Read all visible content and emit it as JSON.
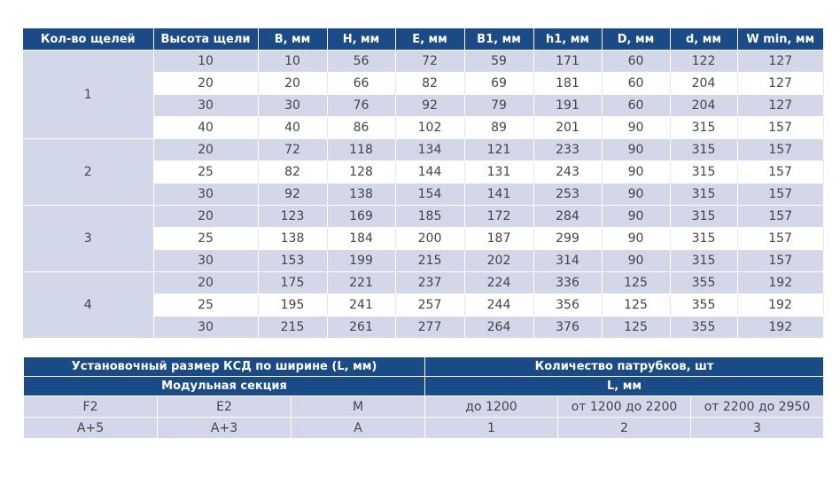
{
  "dims_table": {
    "headers": [
      "Кол-во щелей",
      "Высота щели",
      "B, мм",
      "H, мм",
      "E, мм",
      "B1, мм",
      "h1, мм",
      "D, мм",
      "d, мм",
      "W min, мм"
    ],
    "groups": [
      {
        "count": "1",
        "rows": [
          [
            "10",
            "10",
            "56",
            "72",
            "59",
            "171",
            "60",
            "122",
            "127"
          ],
          [
            "20",
            "20",
            "66",
            "82",
            "69",
            "181",
            "60",
            "204",
            "127"
          ],
          [
            "30",
            "30",
            "76",
            "92",
            "79",
            "191",
            "60",
            "204",
            "127"
          ],
          [
            "40",
            "40",
            "86",
            "102",
            "89",
            "201",
            "90",
            "315",
            "157"
          ]
        ]
      },
      {
        "count": "2",
        "rows": [
          [
            "20",
            "72",
            "118",
            "134",
            "121",
            "233",
            "90",
            "315",
            "157"
          ],
          [
            "25",
            "82",
            "128",
            "144",
            "131",
            "243",
            "90",
            "315",
            "157"
          ],
          [
            "30",
            "92",
            "138",
            "154",
            "141",
            "253",
            "90",
            "315",
            "157"
          ]
        ]
      },
      {
        "count": "3",
        "rows": [
          [
            "20",
            "123",
            "169",
            "185",
            "172",
            "284",
            "90",
            "315",
            "157"
          ],
          [
            "25",
            "138",
            "184",
            "200",
            "187",
            "299",
            "90",
            "315",
            "157"
          ],
          [
            "30",
            "153",
            "199",
            "215",
            "202",
            "314",
            "90",
            "315",
            "157"
          ]
        ]
      },
      {
        "count": "4",
        "rows": [
          [
            "20",
            "175",
            "221",
            "237",
            "224",
            "336",
            "125",
            "355",
            "192"
          ],
          [
            "25",
            "195",
            "241",
            "257",
            "244",
            "356",
            "125",
            "355",
            "192"
          ],
          [
            "30",
            "215",
            "261",
            "277",
            "264",
            "376",
            "125",
            "355",
            "192"
          ]
        ]
      }
    ]
  },
  "install_table": {
    "header_left": "Установочный размер КСД по ширине (L, мм)",
    "header_right": "Количество патрубков, шт",
    "subheader_left": "Модульная секция",
    "subheader_right": "L, мм",
    "row1": [
      "F2",
      "E2",
      "M",
      "до 1200",
      "от 1200 до 2200",
      "от 2200 до 2950"
    ],
    "row2": [
      "A+5",
      "A+3",
      "A",
      "1",
      "2",
      "3"
    ]
  }
}
